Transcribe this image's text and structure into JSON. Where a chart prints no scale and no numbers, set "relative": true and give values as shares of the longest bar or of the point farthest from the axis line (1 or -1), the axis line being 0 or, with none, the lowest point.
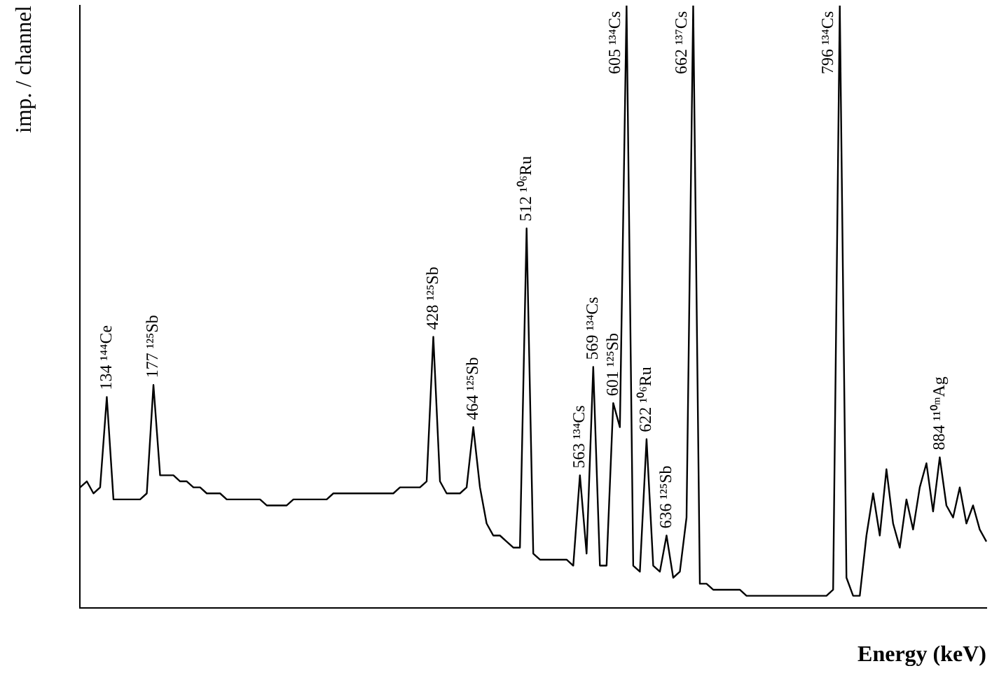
{
  "chart_data": {
    "type": "line",
    "xlabel": "Energy (keV)",
    "ylabel": "imp. / channel",
    "relative": true,
    "grid": false,
    "legend": false,
    "marker": "none",
    "categories": [
      null,
      null,
      null,
      null,
      null,
      null,
      null,
      null,
      null,
      null,
      null,
      null,
      null,
      null,
      null,
      null,
      null,
      null,
      null,
      null,
      null,
      null,
      null,
      null,
      null,
      null,
      null,
      null,
      null,
      null,
      null,
      null,
      null,
      null,
      null,
      null,
      null,
      null,
      null,
      null,
      null,
      null,
      null,
      null,
      null,
      null,
      null,
      null,
      null,
      null,
      null,
      null,
      null,
      null,
      null,
      null,
      null,
      null,
      null,
      null,
      null,
      null,
      null,
      null,
      null,
      null,
      null,
      null,
      null,
      null,
      null,
      null,
      null,
      null,
      null,
      null,
      null,
      null,
      null,
      null,
      null,
      null,
      null,
      null,
      null,
      null,
      null,
      null,
      null,
      null,
      null,
      null,
      null,
      null,
      null,
      null,
      null,
      null,
      null,
      null,
      null,
      null,
      null,
      null,
      null,
      null,
      null,
      null,
      null,
      null,
      null,
      null,
      null,
      null,
      null,
      null,
      null,
      null,
      null,
      null,
      null,
      null,
      null,
      null,
      null,
      null,
      null,
      null,
      null,
      null,
      null,
      null,
      null,
      null,
      null,
      null,
      null
    ],
    "series": [
      {
        "color": "#000000",
        "values": [
          0.2,
          0.21,
          0.19,
          0.2,
          0.35,
          0.18,
          0.18,
          0.18,
          0.18,
          0.18,
          0.19,
          0.37,
          0.22,
          0.22,
          0.22,
          0.21,
          0.21,
          0.2,
          0.2,
          0.19,
          0.19,
          0.19,
          0.18,
          0.18,
          0.18,
          0.18,
          0.18,
          0.18,
          0.17,
          0.17,
          0.17,
          0.17,
          0.18,
          0.18,
          0.18,
          0.18,
          0.18,
          0.18,
          0.19,
          0.19,
          0.19,
          0.19,
          0.19,
          0.19,
          0.19,
          0.19,
          0.19,
          0.19,
          0.2,
          0.2,
          0.2,
          0.2,
          0.21,
          0.45,
          0.21,
          0.19,
          0.19,
          0.19,
          0.2,
          0.3,
          0.2,
          0.14,
          0.12,
          0.12,
          0.11,
          0.1,
          0.1,
          0.63,
          0.09,
          0.08,
          0.08,
          0.08,
          0.08,
          0.08,
          0.07,
          0.22,
          0.09,
          0.4,
          0.07,
          0.07,
          0.34,
          0.3,
          1,
          0.07,
          0.06,
          0.28,
          0.07,
          0.06,
          0.12,
          0.05,
          0.06,
          0.15,
          1,
          0.04,
          0.04,
          0.03,
          0.03,
          0.03,
          0.03,
          0.03,
          0.02,
          0.02,
          0.02,
          0.02,
          0.02,
          0.02,
          0.02,
          0.02,
          0.02,
          0.02,
          0.02,
          0.02,
          0.02,
          0.03,
          1,
          0.05,
          0.02,
          0.02,
          0.12,
          0.19,
          0.12,
          0.23,
          0.14,
          0.1,
          0.18,
          0.13,
          0.2,
          0.24,
          0.16,
          0.25,
          0.17,
          0.15,
          0.2,
          0.14,
          0.17,
          0.13,
          0.11
        ]
      }
    ],
    "annotations": [
      {
        "text": "134 ¹⁴⁴Ce",
        "y": 0.35
      },
      {
        "text": "177 ¹²⁵Sb",
        "y": 0.37
      },
      {
        "text": "428 ¹²⁵Sb",
        "y": 0.45
      },
      {
        "text": "464 ¹²⁵Sb",
        "y": 0.3
      },
      {
        "text": "512 ¹⁰⁶Ru",
        "y": 0.63
      },
      {
        "text": "563 ¹³⁴Cs",
        "y": 0.22
      },
      {
        "text": "569 ¹³⁴Cs",
        "y": 0.4
      },
      {
        "text": "601 ¹²⁵Sb",
        "y": 0.34
      },
      "605 ¹³⁴Cs",
      {
        "text": "622 ¹⁰⁶Ru",
        "y": 0.28
      },
      {
        "text": "636 ¹²⁵Sb",
        "y": 0.12
      },
      "662 ¹³⁷Cs",
      "796 ¹³⁴Cs",
      {
        "text": "884 ¹¹⁰ᵐAg",
        "y": 0.25
      }
    ]
  }
}
